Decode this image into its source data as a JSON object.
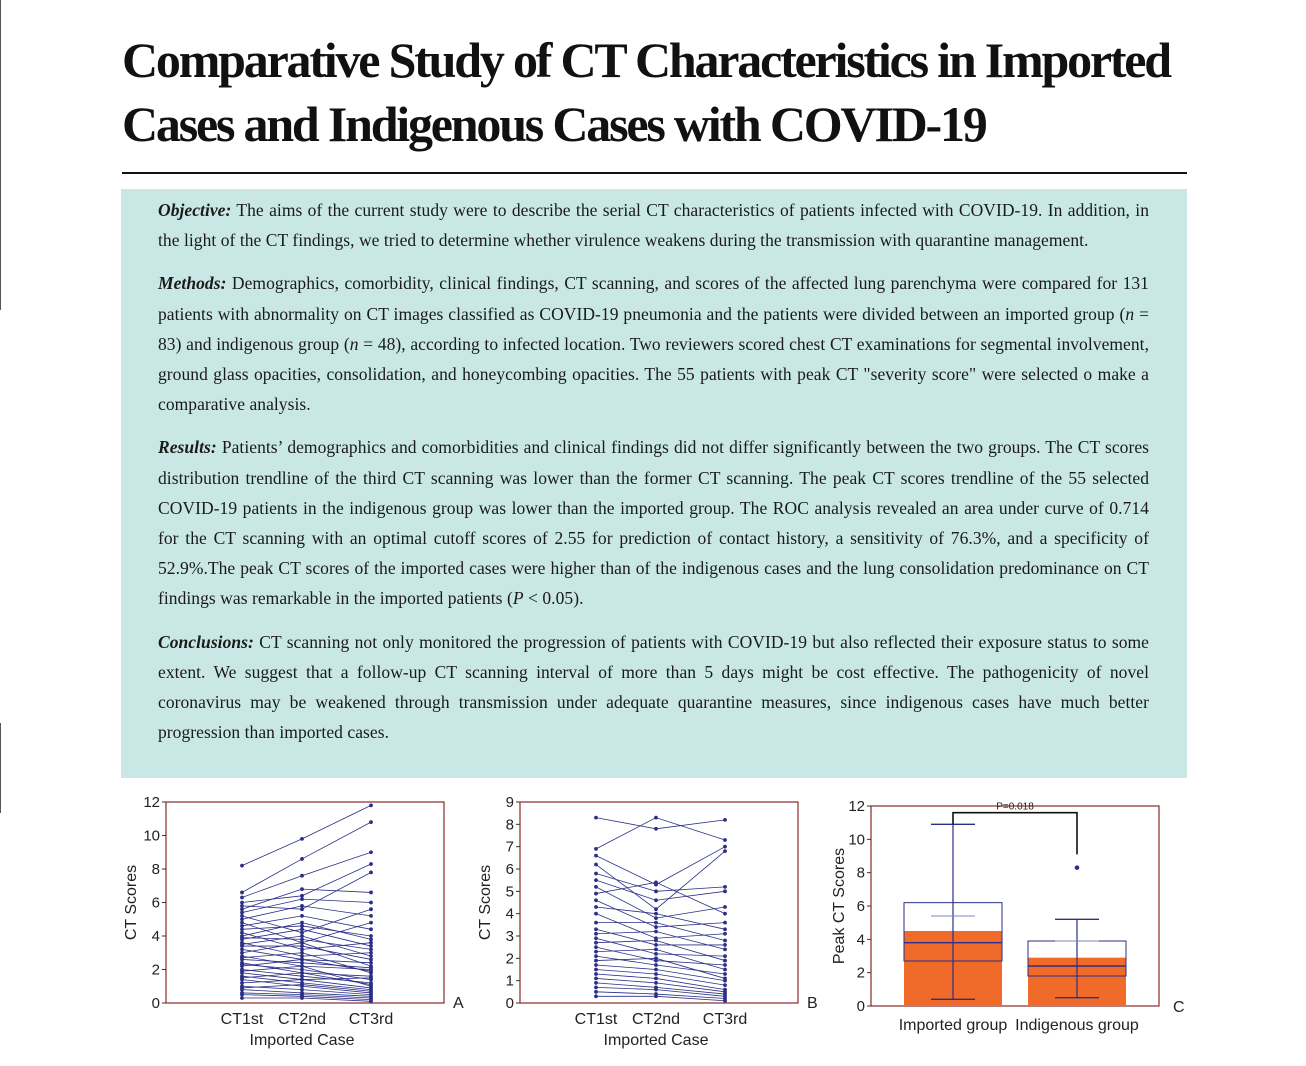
{
  "title": "Comparative Study of CT Characteristics in Imported Cases and Indigenous Cases with COVID-19",
  "abstract": {
    "objective": {
      "label": "Objective:",
      "text": " The aims of the current study were to describe the serial CT characteristics of patients infected with COVID-19. In addition, in the light of the CT findings, we tried to determine whether virulence weakens during the transmission with quarantine management."
    },
    "methods": {
      "label": "Methods:",
      "text1": " Demographics, comorbidity, clinical findings, CT scanning, and scores of the affected lung parenchyma were compared for 131 patients with abnormality on CT images classified as COVID-19 pneumonia and the patients were divided between an imported group (",
      "n": "n",
      "text2": " = 83) and indigenous group (",
      "text3": " = 48), according to infected location. Two reviewers scored chest CT examinations for segmental involvement, ground glass opacities, consolidation, and honeycombing opacities. The 55 patients with peak CT \"severity score\" were selected o make a comparative analysis."
    },
    "results": {
      "label": "Results:",
      "text1": " Patients’ demographics and comorbidities and clinical findings did not differ significantly between the two groups. The CT scores distribution trendline of the third CT scanning was lower than the former CT scanning. The peak CT scores trendline of the 55 selected COVID-19 patients in the indigenous group was lower than the imported group. The ROC analysis revealed an area under curve of 0.714 for the CT scanning with an optimal cutoff scores of 2.55 for prediction of contact history, a sensitivity of 76.3%, and a specificity of 52.9%.The peak CT scores of the imported cases were higher than of the indigenous cases and the lung consolidation predominance on CT findings was remarkable in the imported patients (",
      "p": "P",
      "text2": " < 0.05)."
    },
    "conclusions": {
      "label": "Conclusions:",
      "text": " CT scanning not only monitored the progression of patients with COVID-19 but also reflected their exposure status to some extent. We suggest that a follow-up CT scanning interval of more than 5 days might be cost effective. The pathogenicity of novel coronavirus may be weakened through transmission under adequate quarantine measures, since indigenous cases have much better progression than imported cases."
    }
  },
  "colors": {
    "line": "#2b2f86",
    "box": "#f06a2a",
    "frame": "#8a2a2a",
    "abstract_bg": "#c9e8e5"
  },
  "chart_data": [
    {
      "type": "line",
      "panel": "A",
      "xlabel": "Imported Case",
      "ylabel": "CT Scores",
      "categories": [
        "CT1st",
        "CT2nd",
        "CT3rd"
      ],
      "ylim": [
        0,
        12
      ],
      "yticks": [
        0,
        2,
        4,
        6,
        8,
        10,
        12
      ],
      "series": [
        {
          "values": [
            8.2,
            9.8,
            11.8
          ]
        },
        {
          "values": [
            6.6,
            8.6,
            10.8
          ]
        },
        {
          "values": [
            6.3,
            7.6,
            9.0
          ]
        },
        {
          "values": [
            6.0,
            6.4,
            8.3
          ]
        },
        {
          "values": [
            5.8,
            5.6,
            7.8
          ]
        },
        {
          "values": [
            5.6,
            6.8,
            6.6
          ]
        },
        {
          "values": [
            5.4,
            6.2,
            6.0
          ]
        },
        {
          "values": [
            5.2,
            4.2,
            5.6
          ]
        },
        {
          "values": [
            5.0,
            5.8,
            5.2
          ]
        },
        {
          "values": [
            4.8,
            3.6,
            4.8
          ]
        },
        {
          "values": [
            4.6,
            5.2,
            4.4
          ]
        },
        {
          "values": [
            4.4,
            4.6,
            4.0
          ]
        },
        {
          "values": [
            4.2,
            3.2,
            3.6
          ]
        },
        {
          "values": [
            4.0,
            4.8,
            3.8
          ]
        },
        {
          "values": [
            3.9,
            3.8,
            3.2
          ]
        },
        {
          "values": [
            3.8,
            4.4,
            3.4
          ]
        },
        {
          "values": [
            3.6,
            2.8,
            3.0
          ]
        },
        {
          "values": [
            3.5,
            4.0,
            2.8
          ]
        },
        {
          "values": [
            3.4,
            3.4,
            2.6
          ]
        },
        {
          "values": [
            3.2,
            2.6,
            2.4
          ]
        },
        {
          "values": [
            3.0,
            3.6,
            2.2
          ]
        },
        {
          "values": [
            2.8,
            2.2,
            2.0
          ]
        },
        {
          "values": [
            2.7,
            3.0,
            1.8
          ]
        },
        {
          "values": [
            2.6,
            2.4,
            2.1
          ]
        },
        {
          "values": [
            2.4,
            1.8,
            1.6
          ]
        },
        {
          "values": [
            2.3,
            2.0,
            1.4
          ]
        },
        {
          "values": [
            2.2,
            2.6,
            1.9
          ]
        },
        {
          "values": [
            2.0,
            1.6,
            1.2
          ]
        },
        {
          "values": [
            1.9,
            2.2,
            1.0
          ]
        },
        {
          "values": [
            1.8,
            1.4,
            1.5
          ]
        },
        {
          "values": [
            1.6,
            1.2,
            0.8
          ]
        },
        {
          "values": [
            1.5,
            1.8,
            1.1
          ]
        },
        {
          "values": [
            1.4,
            1.0,
            0.6
          ]
        },
        {
          "values": [
            1.2,
            1.4,
            0.9
          ]
        },
        {
          "values": [
            1.0,
            0.8,
            0.5
          ]
        },
        {
          "values": [
            0.9,
            1.1,
            0.7
          ]
        },
        {
          "values": [
            0.8,
            0.6,
            0.4
          ]
        },
        {
          "values": [
            0.6,
            0.5,
            0.3
          ]
        },
        {
          "values": [
            0.5,
            0.4,
            0.2
          ]
        },
        {
          "values": [
            0.3,
            0.3,
            0.1
          ]
        }
      ]
    },
    {
      "type": "line",
      "panel": "B",
      "xlabel": "Imported Case",
      "ylabel": "CT Scores",
      "categories": [
        "CT1st",
        "CT2nd",
        "CT3rd"
      ],
      "ylim": [
        0,
        9
      ],
      "yticks": [
        0,
        1,
        2,
        3,
        4,
        5,
        6,
        7,
        8,
        9
      ],
      "series": [
        {
          "values": [
            8.3,
            7.8,
            8.2
          ]
        },
        {
          "values": [
            6.9,
            8.3,
            7.3
          ]
        },
        {
          "values": [
            6.6,
            5.3,
            7.0
          ]
        },
        {
          "values": [
            6.2,
            4.2,
            6.8
          ]
        },
        {
          "values": [
            5.8,
            5.0,
            5.2
          ]
        },
        {
          "values": [
            5.5,
            4.6,
            5.0
          ]
        },
        {
          "values": [
            5.2,
            3.8,
            4.3
          ]
        },
        {
          "values": [
            4.9,
            5.4,
            4.0
          ]
        },
        {
          "values": [
            4.6,
            3.4,
            3.6
          ]
        },
        {
          "values": [
            4.3,
            4.0,
            3.3
          ]
        },
        {
          "values": [
            4.0,
            2.9,
            3.1
          ]
        },
        {
          "values": [
            3.6,
            3.6,
            2.8
          ]
        },
        {
          "values": [
            3.3,
            2.6,
            2.6
          ]
        },
        {
          "values": [
            3.1,
            3.2,
            2.4
          ]
        },
        {
          "values": [
            2.9,
            2.2,
            2.1
          ]
        },
        {
          "values": [
            2.7,
            2.8,
            1.9
          ]
        },
        {
          "values": [
            2.5,
            1.9,
            1.7
          ]
        },
        {
          "values": [
            2.3,
            2.4,
            1.5
          ]
        },
        {
          "values": [
            2.1,
            1.7,
            1.3
          ]
        },
        {
          "values": [
            1.9,
            2.0,
            1.1
          ]
        },
        {
          "values": [
            1.7,
            1.5,
            1.0
          ]
        },
        {
          "values": [
            1.5,
            1.3,
            0.8
          ]
        },
        {
          "values": [
            1.3,
            1.1,
            0.6
          ]
        },
        {
          "values": [
            1.1,
            0.9,
            0.5
          ]
        },
        {
          "values": [
            0.9,
            0.7,
            0.4
          ]
        },
        {
          "values": [
            0.7,
            0.6,
            0.3
          ]
        },
        {
          "values": [
            0.5,
            0.4,
            0.2
          ]
        },
        {
          "values": [
            0.3,
            0.3,
            0.1
          ]
        }
      ]
    },
    {
      "type": "box",
      "panel": "C",
      "xlabel": "",
      "ylabel": "Peak CT Scores",
      "categories": [
        "Imported group",
        "Indigenous group"
      ],
      "ylim": [
        0,
        12
      ],
      "yticks": [
        0,
        2,
        4,
        6,
        8,
        10,
        12
      ],
      "annotation": "P=0.018",
      "groups": [
        {
          "name": "Imported group",
          "min": 0.4,
          "q1": 2.7,
          "median": 3.8,
          "q3": 4.5,
          "max": 10.9,
          "ci_low": 4.2,
          "ci_high": 6.2,
          "mean_ci_top": 5.4,
          "outliers": []
        },
        {
          "name": "Indigenous group",
          "min": 0.5,
          "q1": 1.8,
          "median": 2.4,
          "q3": 2.9,
          "max": 5.2,
          "ci_low": 2.5,
          "ci_high": 3.9,
          "mean_ci_top": 3.9,
          "outliers": [
            8.3
          ]
        }
      ]
    }
  ]
}
